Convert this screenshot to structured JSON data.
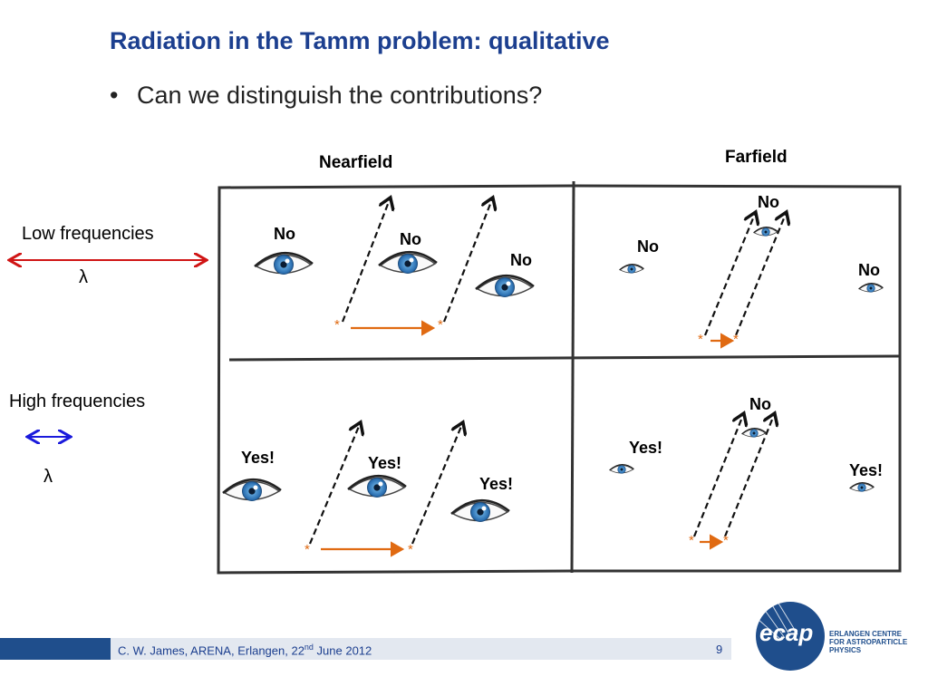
{
  "slide": {
    "title": "Radiation in the Tamm problem: qualitative",
    "bullet": "Can we distinguish the contributions?",
    "bullet_marker": "•"
  },
  "columns": {
    "near": "Nearfield",
    "far": "Farfield"
  },
  "rows": {
    "low": {
      "label": "Low frequencies",
      "lambda": "λ",
      "arrow_color": "#d01515"
    },
    "high": {
      "label": "High frequencies",
      "lambda": "λ",
      "arrow_color": "#1a1adc"
    }
  },
  "cells": {
    "low_near": [
      "No",
      "No",
      "No"
    ],
    "low_far": [
      "No",
      "No",
      "No"
    ],
    "high_near": [
      "Yes!",
      "Yes!",
      "Yes!"
    ],
    "high_far": [
      "Yes!",
      "No",
      "Yes!"
    ]
  },
  "star": "*",
  "colors": {
    "title": "#1c3f8f",
    "accent_orange": "#e06a12",
    "footer_blue": "#1f4e8c"
  },
  "footer": {
    "author": "C. W. James, ARENA, Erlangen, 22",
    "sup": "nd",
    "date_tail": " June 2012",
    "page": "9"
  },
  "logo": {
    "word": "ecap",
    "line1": "ERLANGEN CENTRE",
    "line2": "FOR ASTROPARTICLE",
    "line3": "PHYSICS"
  }
}
